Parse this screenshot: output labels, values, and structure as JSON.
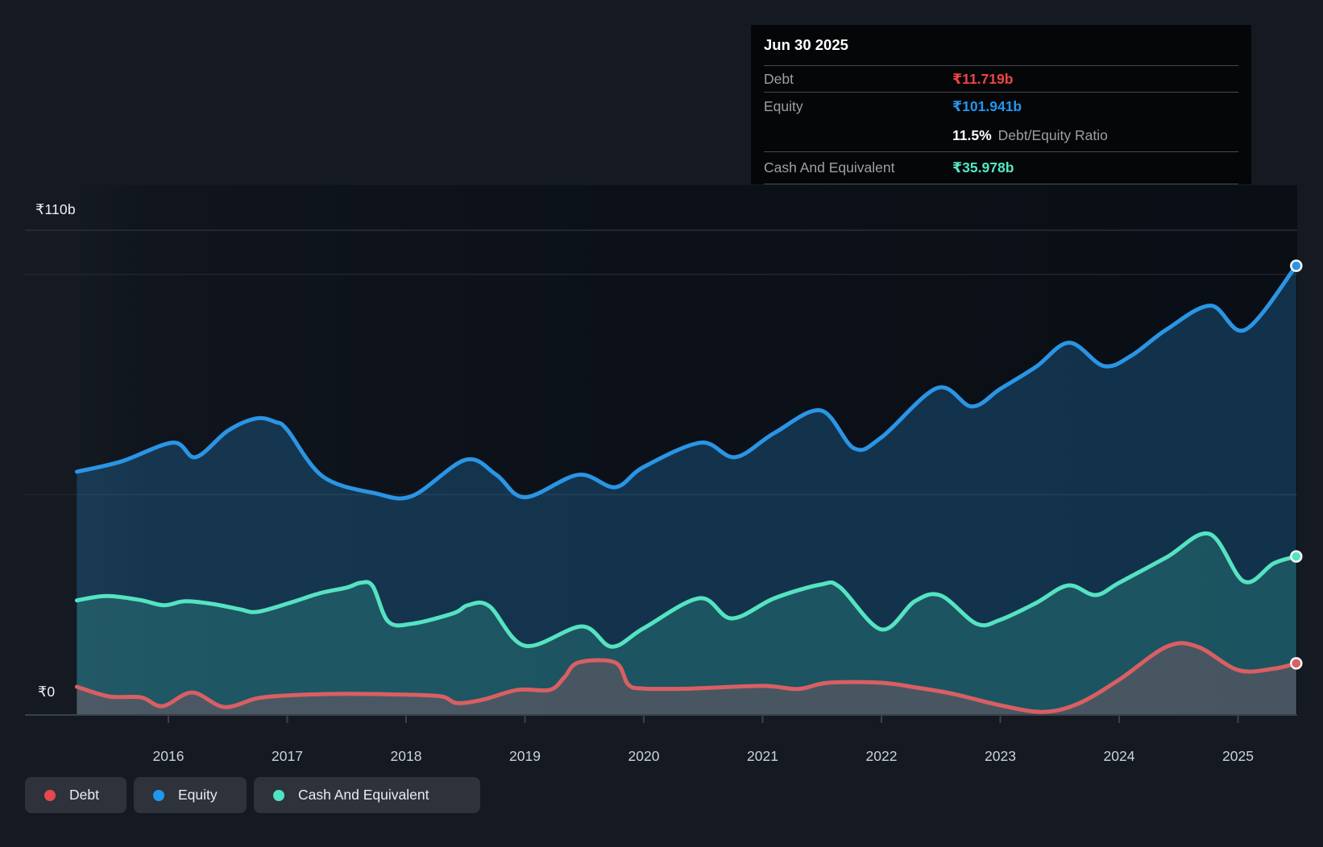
{
  "y_axis": {
    "top_label": "₹110b",
    "bottom_label": "₹0"
  },
  "x_axis": {
    "years": [
      "2016",
      "2017",
      "2018",
      "2019",
      "2020",
      "2021",
      "2022",
      "2023",
      "2024",
      "2025"
    ]
  },
  "tooltip": {
    "date": "Jun 30 2025",
    "debt_label": "Debt",
    "debt_value": "₹11.719b",
    "equity_label": "Equity",
    "equity_value": "₹101.941b",
    "ratio_value": "11.5%",
    "ratio_label": "Debt/Equity Ratio",
    "cash_label": "Cash And Equivalent",
    "cash_value": "₹35.978b"
  },
  "legend": {
    "debt_label": "Debt",
    "equity_label": "Equity",
    "cash_label": "Cash And Equivalent"
  },
  "colors": {
    "debt": "#e5484d",
    "equity": "#2196ef",
    "cash": "#4ee3c2",
    "debt_line": "#d95f63",
    "equity_line": "#2a95e5",
    "cash_line": "#55e3c2",
    "debt_fill": "rgba(226,94,98,0.22)",
    "equity_fill": "rgba(42,149,229,0.26)",
    "cash_fill": "rgba(70,222,184,0.20)",
    "grid_major": "#2b2f36",
    "grid_minor": "#21252c",
    "axis": "#3b4149",
    "dot_ring": "#f5f7f9"
  },
  "chart_data": {
    "type": "area",
    "title": "Debt to Equity History (₹, billions)",
    "xlabel": "",
    "ylabel": "",
    "x_range": [
      2015.23,
      2025.5
    ],
    "ylim": [
      0,
      110
    ],
    "y_gridline_values": [
      110,
      100,
      50,
      0
    ],
    "y_tick_labels": [
      {
        "value": 110,
        "label": "₹110b"
      },
      {
        "value": 0,
        "label": "₹0"
      }
    ],
    "x_tick_years": [
      2016,
      2017,
      2018,
      2019,
      2020,
      2021,
      2022,
      2023,
      2024,
      2025
    ],
    "legend_position": "bottom-left",
    "grid": true,
    "latest_point": {
      "date": "Jun 30 2025",
      "debt_b": 11.719,
      "equity_b": 101.941,
      "cash_b": 35.978,
      "debt_equity_ratio_pct": 11.5
    },
    "series": [
      {
        "name": "Equity",
        "color_key": "equity",
        "points": [
          [
            2015.23,
            55.2
          ],
          [
            2015.6,
            57.5
          ],
          [
            2016.04,
            61.8
          ],
          [
            2016.23,
            58.5
          ],
          [
            2016.5,
            64.5
          ],
          [
            2016.74,
            67.3
          ],
          [
            2016.9,
            66.5
          ],
          [
            2017.0,
            64.7
          ],
          [
            2017.3,
            54.1
          ],
          [
            2017.74,
            50.3
          ],
          [
            2018.05,
            49.7
          ],
          [
            2018.5,
            57.9
          ],
          [
            2018.76,
            54.5
          ],
          [
            2019.0,
            49.4
          ],
          [
            2019.45,
            54.5
          ],
          [
            2019.76,
            51.7
          ],
          [
            2020.0,
            56.3
          ],
          [
            2020.48,
            61.8
          ],
          [
            2020.77,
            58.5
          ],
          [
            2021.1,
            64.0
          ],
          [
            2021.49,
            69.1
          ],
          [
            2021.77,
            60.5
          ],
          [
            2022.0,
            63.0
          ],
          [
            2022.47,
            74.2
          ],
          [
            2022.76,
            70.0
          ],
          [
            2023.0,
            74.0
          ],
          [
            2023.3,
            79.0
          ],
          [
            2023.58,
            84.5
          ],
          [
            2023.87,
            79.2
          ],
          [
            2024.1,
            81.5
          ],
          [
            2024.4,
            87.5
          ],
          [
            2024.77,
            92.9
          ],
          [
            2025.06,
            87.4
          ],
          [
            2025.49,
            101.941
          ]
        ]
      },
      {
        "name": "Cash And Equivalent",
        "color_key": "cash",
        "points": [
          [
            2015.23,
            26.0
          ],
          [
            2015.48,
            27.0
          ],
          [
            2015.76,
            26.1
          ],
          [
            2015.96,
            24.9
          ],
          [
            2016.14,
            25.8
          ],
          [
            2016.37,
            25.2
          ],
          [
            2016.6,
            24.0
          ],
          [
            2016.75,
            23.4
          ],
          [
            2017.04,
            25.6
          ],
          [
            2017.27,
            27.6
          ],
          [
            2017.5,
            28.9
          ],
          [
            2017.62,
            30.0
          ],
          [
            2017.72,
            29.2
          ],
          [
            2017.85,
            21.2
          ],
          [
            2018.05,
            20.7
          ],
          [
            2018.4,
            23.1
          ],
          [
            2018.52,
            24.9
          ],
          [
            2018.7,
            24.7
          ],
          [
            2019.0,
            15.7
          ],
          [
            2019.48,
            20.1
          ],
          [
            2019.73,
            15.5
          ],
          [
            2020.0,
            19.7
          ],
          [
            2020.47,
            26.5
          ],
          [
            2020.74,
            21.9
          ],
          [
            2021.1,
            26.5
          ],
          [
            2021.49,
            29.6
          ],
          [
            2021.65,
            29.0
          ],
          [
            2022.0,
            19.4
          ],
          [
            2022.28,
            25.8
          ],
          [
            2022.5,
            27.1
          ],
          [
            2022.8,
            20.7
          ],
          [
            2023.0,
            21.6
          ],
          [
            2023.3,
            25.4
          ],
          [
            2023.57,
            29.4
          ],
          [
            2023.8,
            27.2
          ],
          [
            2024.0,
            30.0
          ],
          [
            2024.4,
            35.8
          ],
          [
            2024.76,
            41.1
          ],
          [
            2025.05,
            30.3
          ],
          [
            2025.3,
            34.4
          ],
          [
            2025.49,
            35.978
          ]
        ]
      },
      {
        "name": "Debt",
        "color_key": "debt",
        "points": [
          [
            2015.23,
            6.4
          ],
          [
            2015.5,
            4.2
          ],
          [
            2015.77,
            4.0
          ],
          [
            2015.95,
            2.0
          ],
          [
            2016.2,
            5.1
          ],
          [
            2016.47,
            1.8
          ],
          [
            2016.75,
            3.8
          ],
          [
            2017.05,
            4.5
          ],
          [
            2017.5,
            4.8
          ],
          [
            2018.0,
            4.6
          ],
          [
            2018.3,
            4.2
          ],
          [
            2018.43,
            2.7
          ],
          [
            2018.65,
            3.5
          ],
          [
            2018.94,
            5.7
          ],
          [
            2019.21,
            5.7
          ],
          [
            2019.33,
            8.5
          ],
          [
            2019.45,
            11.9
          ],
          [
            2019.76,
            11.9
          ],
          [
            2019.87,
            6.9
          ],
          [
            2020.0,
            6.0
          ],
          [
            2020.4,
            6.0
          ],
          [
            2021.0,
            6.6
          ],
          [
            2021.3,
            5.9
          ],
          [
            2021.55,
            7.3
          ],
          [
            2022.0,
            7.3
          ],
          [
            2022.3,
            6.2
          ],
          [
            2022.6,
            4.8
          ],
          [
            2023.0,
            2.2
          ],
          [
            2023.35,
            0.7
          ],
          [
            2023.65,
            2.5
          ],
          [
            2024.0,
            8.0
          ],
          [
            2024.4,
            15.5
          ],
          [
            2024.66,
            15.5
          ],
          [
            2025.0,
            10.2
          ],
          [
            2025.3,
            10.5
          ],
          [
            2025.49,
            11.719
          ]
        ]
      }
    ]
  }
}
